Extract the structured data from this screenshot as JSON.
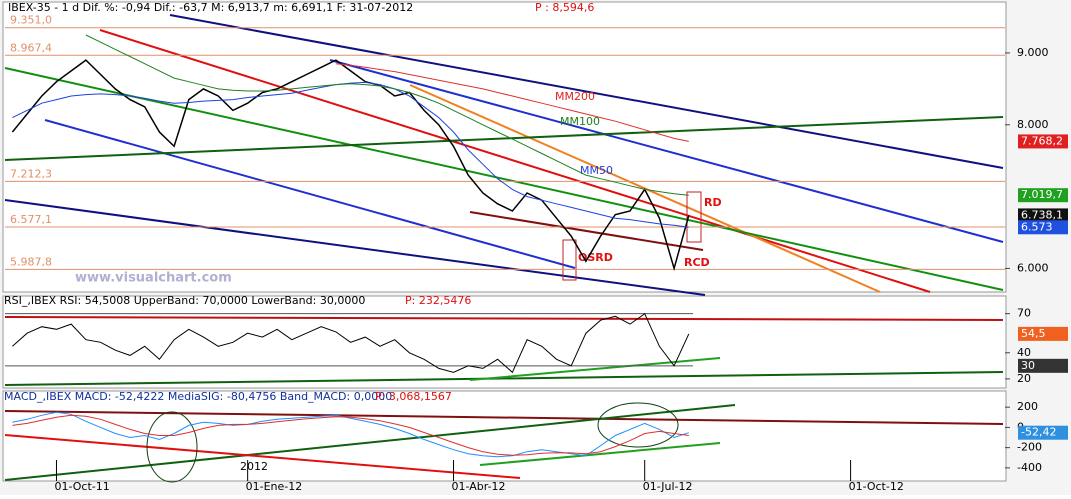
{
  "chart_data": [
    {
      "type": "line",
      "title": "IBEX-35  -  1 d Dif. %: -0,94 Dif.: -63,7 M: 6,913,7 m: 6,691,1 F: 31-07-2012",
      "title_p": "P : 8,594,6",
      "ylim": [
        5700,
        9570
      ],
      "yticks": [
        {
          "value": 9000,
          "label": "9.000"
        },
        {
          "value": 8000,
          "label": "8.000"
        },
        {
          "value": 6000,
          "label": "6.000"
        }
      ],
      "levels": [
        {
          "value": 9351,
          "label": "9.351,0"
        },
        {
          "value": 8967.4,
          "label": "8.967,4"
        },
        {
          "value": 7212.3,
          "label": "7.212,3"
        },
        {
          "value": 6577.1,
          "label": "6.577,1"
        },
        {
          "value": 5987.8,
          "label": "5.987,8"
        }
      ],
      "level_color": "#e0906a",
      "series": [
        {
          "name": "IBEX",
          "color": "#000000",
          "values": [
            7900,
            8150,
            8400,
            8600,
            8750,
            8900,
            8700,
            8500,
            8350,
            8250,
            7900,
            7700,
            8350,
            8500,
            8400,
            8200,
            8300,
            8450,
            8500,
            8600,
            8700,
            8800,
            8900,
            8750,
            8600,
            8550,
            8400,
            8450,
            8200,
            8000,
            7700,
            7300,
            7050,
            6900,
            6800,
            7050,
            6950,
            6700,
            6450,
            6100,
            6450,
            6750,
            6800,
            7100,
            6700,
            6000,
            6738.1,
            null,
            null,
            null,
            null,
            null,
            null,
            null,
            null,
            null,
            null,
            null,
            null,
            null,
            null,
            null,
            null,
            null,
            null,
            null,
            null,
            null
          ]
        },
        {
          "name": "MM50",
          "color": "#2040e0",
          "values": [
            8100,
            8200,
            8300,
            8350,
            8400,
            8420,
            8430,
            8420,
            8400,
            8370,
            8330,
            8300,
            8310,
            8330,
            8340,
            8350,
            8380,
            8400,
            8420,
            8440,
            8480,
            8520,
            8560,
            8580,
            8590,
            8560,
            8500,
            8400,
            8250,
            8100,
            7900,
            7650,
            7450,
            7250,
            7100,
            7000,
            6950,
            6900,
            6850,
            6800,
            6750,
            6700,
            6680,
            6650,
            6620,
            6600,
            6573,
            null,
            null,
            null,
            null,
            null,
            null,
            null,
            null,
            null,
            null,
            null,
            null,
            null,
            null,
            null,
            null,
            null,
            null,
            null,
            null,
            null
          ]
        },
        {
          "name": "MM100",
          "color": "#208020",
          "values": [
            null,
            null,
            null,
            null,
            null,
            9250,
            9150,
            9050,
            8950,
            8850,
            8750,
            8650,
            8600,
            8550,
            8500,
            8480,
            8470,
            8470,
            8480,
            8500,
            8520,
            8540,
            8560,
            8570,
            8560,
            8540,
            8500,
            8450,
            8380,
            8300,
            8200,
            8100,
            8000,
            7900,
            7800,
            7700,
            7600,
            7500,
            7400,
            7300,
            7250,
            7200,
            7150,
            7100,
            7070,
            7040,
            7019.7,
            null,
            null,
            null,
            null,
            null,
            null,
            null,
            null,
            null,
            null,
            null,
            null,
            null,
            null,
            null,
            null,
            null,
            null,
            null,
            null,
            null
          ]
        },
        {
          "name": "MM200",
          "color": "#e03030",
          "values": [
            null,
            null,
            null,
            null,
            null,
            null,
            null,
            null,
            null,
            null,
            null,
            null,
            null,
            null,
            null,
            null,
            null,
            null,
            null,
            null,
            null,
            null,
            8850,
            8830,
            8800,
            8770,
            8740,
            8700,
            8660,
            8620,
            8580,
            8540,
            8500,
            8450,
            8400,
            8350,
            8300,
            8250,
            8200,
            8150,
            8100,
            8050,
            7990,
            7930,
            7870,
            7810,
            7768.2,
            null,
            null,
            null,
            null,
            null,
            null,
            null,
            null,
            null,
            null,
            null,
            null,
            null,
            null,
            null,
            null,
            null,
            null,
            null,
            null,
            null
          ]
        }
      ],
      "badges": [
        {
          "value": 7768.2,
          "label": "7.768,2",
          "color": "#e02020"
        },
        {
          "value": 7019.7,
          "label": "7.019,7",
          "color": "#20a020"
        },
        {
          "value": 6738.1,
          "label": "6.738,1",
          "color": "#101010"
        },
        {
          "value": 6573,
          "label": "6.573",
          "color": "#2050e0"
        }
      ],
      "annotations": [
        "MM200",
        "MM100",
        "MM50",
        "RD",
        "RCD",
        "OSRD",
        "www.visualchart.com"
      ]
    },
    {
      "type": "line",
      "title": "RSI_,IBEX RSI: 54,5008 UpperBand: 70,0000 LowerBand: 30,0000",
      "title_p": "P: 232,5476",
      "ylim": [
        13,
        82
      ],
      "yticks": [
        70,
        40,
        20
      ],
      "bands": [
        70,
        30
      ],
      "series": [
        {
          "name": "RSI",
          "color": "#000000",
          "values": [
            45,
            55,
            60,
            58,
            62,
            50,
            48,
            42,
            38,
            45,
            35,
            50,
            58,
            52,
            45,
            48,
            55,
            52,
            58,
            50,
            55,
            60,
            56,
            48,
            52,
            45,
            50,
            40,
            35,
            28,
            25,
            30,
            28,
            35,
            25,
            50,
            45,
            35,
            30,
            55,
            65,
            68,
            62,
            70,
            45,
            30,
            54.5,
            null,
            null,
            null,
            null,
            null,
            null,
            null,
            null,
            null,
            null,
            null,
            null,
            null,
            null,
            null,
            null,
            null,
            null,
            null,
            null,
            null
          ]
        }
      ],
      "badges": [
        {
          "value": 54.5,
          "label": "54,5",
          "color": "#f06020"
        },
        {
          "value": 30,
          "label": "30",
          "color": "#333333"
        }
      ]
    },
    {
      "type": "line",
      "title": "MACD_,IBEX MACD: -52,4222 MediaSIG: -80,4756 Band_MACD: 0,0000",
      "title_p": "P: 3,068,1567",
      "ylim": [
        -520,
        350
      ],
      "yticks": [
        200,
        0,
        -200,
        -400
      ],
      "categories": [
        null,
        null,
        null,
        "01-Oct-11",
        null,
        null,
        null,
        null,
        null,
        null,
        null,
        null,
        null,
        null,
        null,
        null,
        "01-Ene-12",
        null,
        null,
        null,
        null,
        null,
        null,
        null,
        null,
        null,
        null,
        null,
        null,
        null,
        "01-Abr-12",
        null,
        null,
        null,
        null,
        null,
        null,
        null,
        null,
        null,
        null,
        null,
        null,
        "01-Jul-12",
        null,
        null,
        null,
        null,
        null,
        null,
        null,
        null,
        null,
        null,
        null,
        null,
        null,
        "01-Oct-12",
        null,
        null,
        null,
        null,
        null,
        null,
        null,
        null,
        null,
        null
      ],
      "series": [
        {
          "name": "MACD",
          "color": "#1e90ff",
          "values": [
            50,
            80,
            120,
            150,
            130,
            60,
            0,
            -60,
            -100,
            -80,
            -120,
            -60,
            20,
            50,
            40,
            20,
            30,
            60,
            80,
            90,
            100,
            110,
            120,
            90,
            60,
            30,
            -10,
            -60,
            -120,
            -170,
            -220,
            -260,
            -280,
            -290,
            -280,
            -240,
            -220,
            -240,
            -260,
            -280,
            -180,
            -80,
            -20,
            40,
            -20,
            -100,
            -52.42,
            null,
            null,
            null,
            null,
            null,
            null,
            null,
            null,
            null,
            null,
            null,
            null,
            null,
            null,
            null,
            null,
            null,
            null,
            null,
            null,
            null
          ]
        },
        {
          "name": "MediaSIG",
          "color": "#e03030",
          "values": [
            20,
            40,
            70,
            100,
            120,
            110,
            80,
            30,
            -20,
            -60,
            -80,
            -80,
            -50,
            -10,
            20,
            30,
            30,
            40,
            55,
            70,
            85,
            95,
            105,
            100,
            85,
            65,
            35,
            0,
            -50,
            -100,
            -150,
            -200,
            -240,
            -265,
            -275,
            -270,
            -255,
            -250,
            -252,
            -260,
            -240,
            -190,
            -130,
            -60,
            -40,
            -60,
            -80.48,
            null,
            null,
            null,
            null,
            null,
            null,
            null,
            null,
            null,
            null,
            null,
            null,
            null,
            null,
            null,
            null,
            null,
            null,
            null,
            null,
            null
          ]
        }
      ],
      "badges": [
        {
          "value": -52.42,
          "label": "-52,42",
          "color": "#3090e0"
        }
      ],
      "annotations": [
        "2012"
      ]
    }
  ]
}
